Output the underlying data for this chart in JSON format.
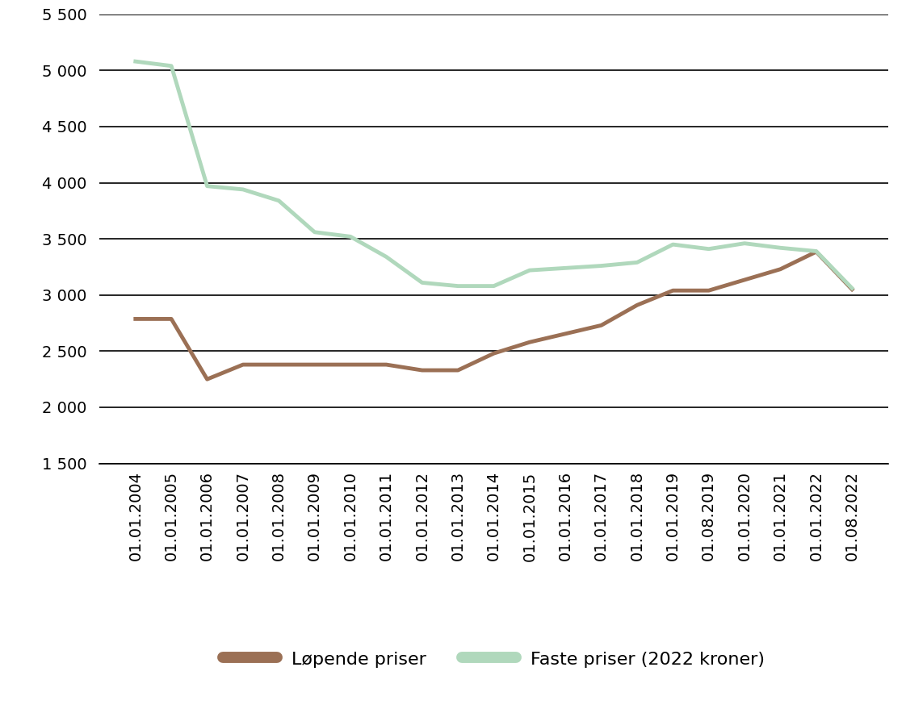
{
  "x_labels": [
    "01.01.2004",
    "01.01.2005",
    "01.01.2006",
    "01.01.2007",
    "01.01.2008",
    "01.01.2009",
    "01.01.2010",
    "01.01.2011",
    "01.01.2012",
    "01.01.2013",
    "01.01.2014",
    "01.01.2015",
    "01.01.2016",
    "01.01.2017",
    "01.01.2018",
    "01.01.2019",
    "01.08.2019",
    "01.01.2020",
    "01.01.2021",
    "01.01.2022",
    "01.08.2022"
  ],
  "lopende_priser": [
    2787,
    2787,
    2250,
    2380,
    2380,
    2380,
    2380,
    2380,
    2330,
    2330,
    2480,
    2580,
    2655,
    2730,
    2910,
    3040,
    3040,
    3135,
    3230,
    3385,
    3050
  ],
  "faste_priser": [
    5080,
    5040,
    3970,
    3940,
    3840,
    3560,
    3520,
    3340,
    3110,
    3080,
    3080,
    3220,
    3240,
    3260,
    3290,
    3450,
    3410,
    3460,
    3420,
    3390,
    3060
  ],
  "lopende_color": "#9B7055",
  "faste_color": "#B0D8BC",
  "line_width": 3.5,
  "ylim": [
    1500,
    5500
  ],
  "yticks": [
    1500,
    2000,
    2500,
    3000,
    3500,
    4000,
    4500,
    5000,
    5500
  ],
  "legend_lopende": "Løpende priser",
  "legend_faste": "Faste priser (2022 kroner)",
  "background_color": "#ffffff",
  "grid_color": "#000000",
  "tick_label_fontsize": 14,
  "legend_fontsize": 16
}
